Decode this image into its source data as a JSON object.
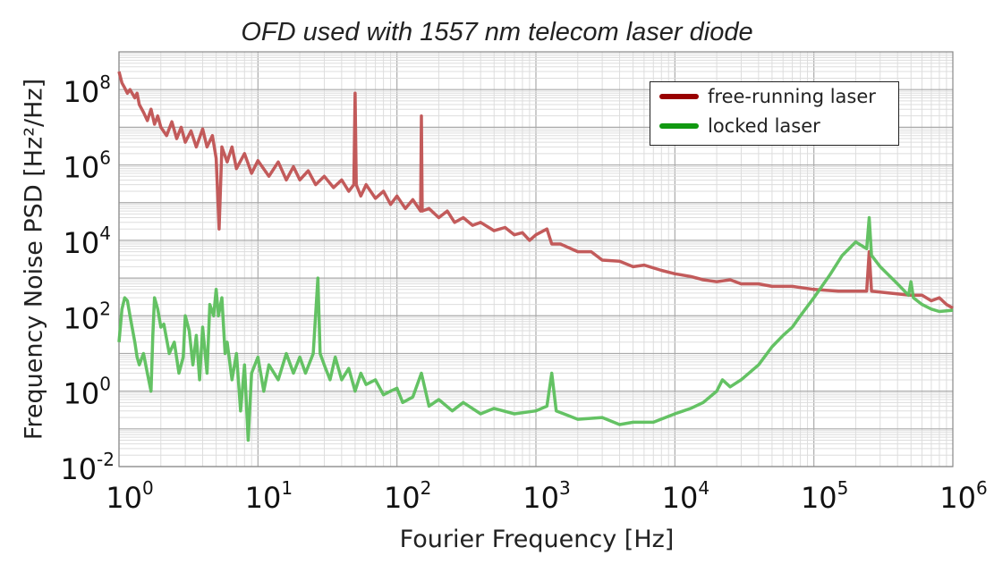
{
  "chart_data": {
    "type": "line",
    "title": "OFD used with 1557 nm telecom laser diode",
    "xlabel": "Fourier Frequency [Hz]",
    "ylabel": "Frequency Noise PSD [Hz²/Hz]",
    "xscale": "log",
    "yscale": "log",
    "xlim": [
      1,
      1000000
    ],
    "ylim": [
      0.01,
      1000000000
    ],
    "grid": true,
    "legend_position": "top-right",
    "xtick_base": "10",
    "xtick_exponents": [
      "0",
      "1",
      "2",
      "3",
      "4",
      "5",
      "6"
    ],
    "ytick_base": "10",
    "ytick_exponents": [
      "-2",
      "0",
      "2",
      "4",
      "6",
      "8"
    ],
    "series": [
      {
        "name": "free-running laser",
        "color": "#c05252",
        "legend_color": "#990000",
        "points": [
          [
            1,
            300000000.0
          ],
          [
            1.05,
            150000000.0
          ],
          [
            1.1,
            110000000.0
          ],
          [
            1.15,
            80000000.0
          ],
          [
            1.2,
            100000000.0
          ],
          [
            1.3,
            60000000.0
          ],
          [
            1.35,
            80000000.0
          ],
          [
            1.4,
            40000000.0
          ],
          [
            1.5,
            25000000.0
          ],
          [
            1.6,
            15000000.0
          ],
          [
            1.7,
            30000000.0
          ],
          [
            1.8,
            12000000.0
          ],
          [
            1.9,
            20000000.0
          ],
          [
            2,
            10000000.0
          ],
          [
            2.2,
            6000000.0
          ],
          [
            2.4,
            14000000.0
          ],
          [
            2.6,
            5000000.0
          ],
          [
            2.8,
            10000000.0
          ],
          [
            3,
            4000000.0
          ],
          [
            3.3,
            8000000.0
          ],
          [
            3.6,
            3000000.0
          ],
          [
            4,
            9000000.0
          ],
          [
            4.3,
            3000000.0
          ],
          [
            4.7,
            6000000.0
          ],
          [
            5,
            1500000.0
          ],
          [
            5.25,
            20000.0
          ],
          [
            5.5,
            3000000.0
          ],
          [
            6,
            1200000.0
          ],
          [
            6.5,
            3000000.0
          ],
          [
            7,
            800000.0
          ],
          [
            8,
            2000000.0
          ],
          [
            9,
            600000.0
          ],
          [
            10,
            1300000.0
          ],
          [
            12,
            500000.0
          ],
          [
            14,
            1200000.0
          ],
          [
            16,
            400000.0
          ],
          [
            18,
            900000.0
          ],
          [
            20,
            400000.0
          ],
          [
            23,
            700000.0
          ],
          [
            26,
            300000.0
          ],
          [
            30,
            500000.0
          ],
          [
            35,
            250000.0
          ],
          [
            40,
            400000.0
          ],
          [
            45,
            200000.0
          ],
          [
            49,
            300000.0
          ],
          [
            50,
            80000000.0
          ],
          [
            51,
            300000.0
          ],
          [
            55,
            150000.0
          ],
          [
            60,
            300000.0
          ],
          [
            70,
            130000.0
          ],
          [
            80,
            200000.0
          ],
          [
            90,
            90000.0
          ],
          [
            100,
            150000.0
          ],
          [
            115,
            70000.0
          ],
          [
            130,
            120000.0
          ],
          [
            148,
            60000.0
          ],
          [
            150,
            20000000.0
          ],
          [
            152,
            60000.0
          ],
          [
            170,
            70000.0
          ],
          [
            200,
            40000.0
          ],
          [
            230,
            60000.0
          ],
          [
            260,
            30000.0
          ],
          [
            300,
            40000.0
          ],
          [
            350,
            25000.0
          ],
          [
            400,
            30000.0
          ],
          [
            500,
            18000.0
          ],
          [
            600,
            22000.0
          ],
          [
            700,
            14000.0
          ],
          [
            800,
            16000.0
          ],
          [
            900,
            10000.0
          ],
          [
            1000,
            14000.0
          ],
          [
            1200,
            20000.0
          ],
          [
            1300,
            8000.0
          ],
          [
            1500,
            8000.0
          ],
          [
            2000,
            5000.0
          ],
          [
            2500,
            5000.0
          ],
          [
            3000,
            3000.0
          ],
          [
            4000,
            2800.0
          ],
          [
            5000,
            2000.0
          ],
          [
            6000,
            2200.0
          ],
          [
            8000,
            1600.0
          ],
          [
            10000.0,
            1300.0
          ],
          [
            13000.0,
            1100.0
          ],
          [
            16000.0,
            900.0
          ],
          [
            20000.0,
            800.0
          ],
          [
            25000.0,
            900.0
          ],
          [
            30000.0,
            700.0
          ],
          [
            40000.0,
            700.0
          ],
          [
            50000.0,
            600.0
          ],
          [
            70000.0,
            600.0
          ],
          [
            100000.0,
            500.0
          ],
          [
            150000.0,
            450.0
          ],
          [
            240000.0,
            450.0
          ],
          [
            250000.0,
            5000.0
          ],
          [
            260000.0,
            450.0
          ],
          [
            350000.0,
            400.0
          ],
          [
            500000.0,
            350.0
          ],
          [
            600000.0,
            350.0
          ],
          [
            700000.0,
            250.0
          ],
          [
            800000.0,
            300.0
          ],
          [
            900000.0,
            200.0
          ],
          [
            1000000.0,
            160.0
          ]
        ]
      },
      {
        "name": "locked laser",
        "color": "#5cbf5c",
        "legend_color": "#119911",
        "points": [
          [
            1,
            20
          ],
          [
            1.05,
            150
          ],
          [
            1.1,
            300
          ],
          [
            1.15,
            250
          ],
          [
            1.2,
            100
          ],
          [
            1.3,
            20
          ],
          [
            1.35,
            8
          ],
          [
            1.4,
            5
          ],
          [
            1.5,
            10
          ],
          [
            1.6,
            3
          ],
          [
            1.7,
            1
          ],
          [
            1.75,
            30
          ],
          [
            1.8,
            300
          ],
          [
            1.9,
            150
          ],
          [
            2,
            50
          ],
          [
            2.1,
            60
          ],
          [
            2.3,
            10
          ],
          [
            2.5,
            20
          ],
          [
            2.7,
            3
          ],
          [
            2.9,
            8
          ],
          [
            3,
            100
          ],
          [
            3.2,
            40
          ],
          [
            3.4,
            5
          ],
          [
            3.6,
            30
          ],
          [
            3.8,
            2
          ],
          [
            4,
            50
          ],
          [
            4.3,
            3
          ],
          [
            4.5,
            200
          ],
          [
            4.8,
            100
          ],
          [
            5,
            500
          ],
          [
            5.2,
            100
          ],
          [
            5.5,
            300
          ],
          [
            5.8,
            10
          ],
          [
            6,
            20
          ],
          [
            6.5,
            2
          ],
          [
            7,
            10
          ],
          [
            7.5,
            0.3
          ],
          [
            8,
            5
          ],
          [
            8.5,
            0.05
          ],
          [
            9,
            3
          ],
          [
            10,
            8
          ],
          [
            11,
            1
          ],
          [
            12,
            5
          ],
          [
            14,
            2
          ],
          [
            16,
            10
          ],
          [
            18,
            3
          ],
          [
            20,
            8
          ],
          [
            22,
            3
          ],
          [
            25,
            10
          ],
          [
            27,
            1000
          ],
          [
            28,
            10
          ],
          [
            30,
            5
          ],
          [
            33,
            2
          ],
          [
            36,
            8
          ],
          [
            40,
            2
          ],
          [
            45,
            4
          ],
          [
            50,
            1
          ],
          [
            55,
            3
          ],
          [
            60,
            1.5
          ],
          [
            70,
            2
          ],
          [
            80,
            0.8
          ],
          [
            90,
            1
          ],
          [
            100,
            1.2
          ],
          [
            110,
            0.5
          ],
          [
            130,
            0.7
          ],
          [
            150,
            3
          ],
          [
            170,
            0.4
          ],
          [
            200,
            0.6
          ],
          [
            250,
            0.3
          ],
          [
            300,
            0.5
          ],
          [
            400,
            0.25
          ],
          [
            500,
            0.35
          ],
          [
            700,
            0.25
          ],
          [
            1000,
            0.3
          ],
          [
            1200,
            0.4
          ],
          [
            1300,
            3
          ],
          [
            1400,
            0.3
          ],
          [
            2000,
            0.18
          ],
          [
            3000,
            0.2
          ],
          [
            4000,
            0.13
          ],
          [
            5000,
            0.15
          ],
          [
            7000,
            0.15
          ],
          [
            10000.0,
            0.25
          ],
          [
            13000.0,
            0.35
          ],
          [
            16000.0,
            0.5
          ],
          [
            20000.0,
            1
          ],
          [
            22000.0,
            2
          ],
          [
            25000.0,
            1.3
          ],
          [
            30000.0,
            2
          ],
          [
            40000.0,
            5
          ],
          [
            50000.0,
            15
          ],
          [
            60000.0,
            30
          ],
          [
            70000.0,
            50
          ],
          [
            80000.0,
            100
          ],
          [
            100000.0,
            300
          ],
          [
            130000.0,
            1200
          ],
          [
            160000.0,
            4000
          ],
          [
            200000.0,
            9000
          ],
          [
            240000.0,
            6000
          ],
          [
            250000.0,
            40000.0
          ],
          [
            260000.0,
            4000
          ],
          [
            300000.0,
            2000
          ],
          [
            400000.0,
            700
          ],
          [
            480000.0,
            350
          ],
          [
            500000.0,
            800
          ],
          [
            520000.0,
            300
          ],
          [
            600000.0,
            200
          ],
          [
            700000.0,
            150
          ],
          [
            800000.0,
            130
          ],
          [
            1000000.0,
            140
          ]
        ]
      }
    ]
  }
}
